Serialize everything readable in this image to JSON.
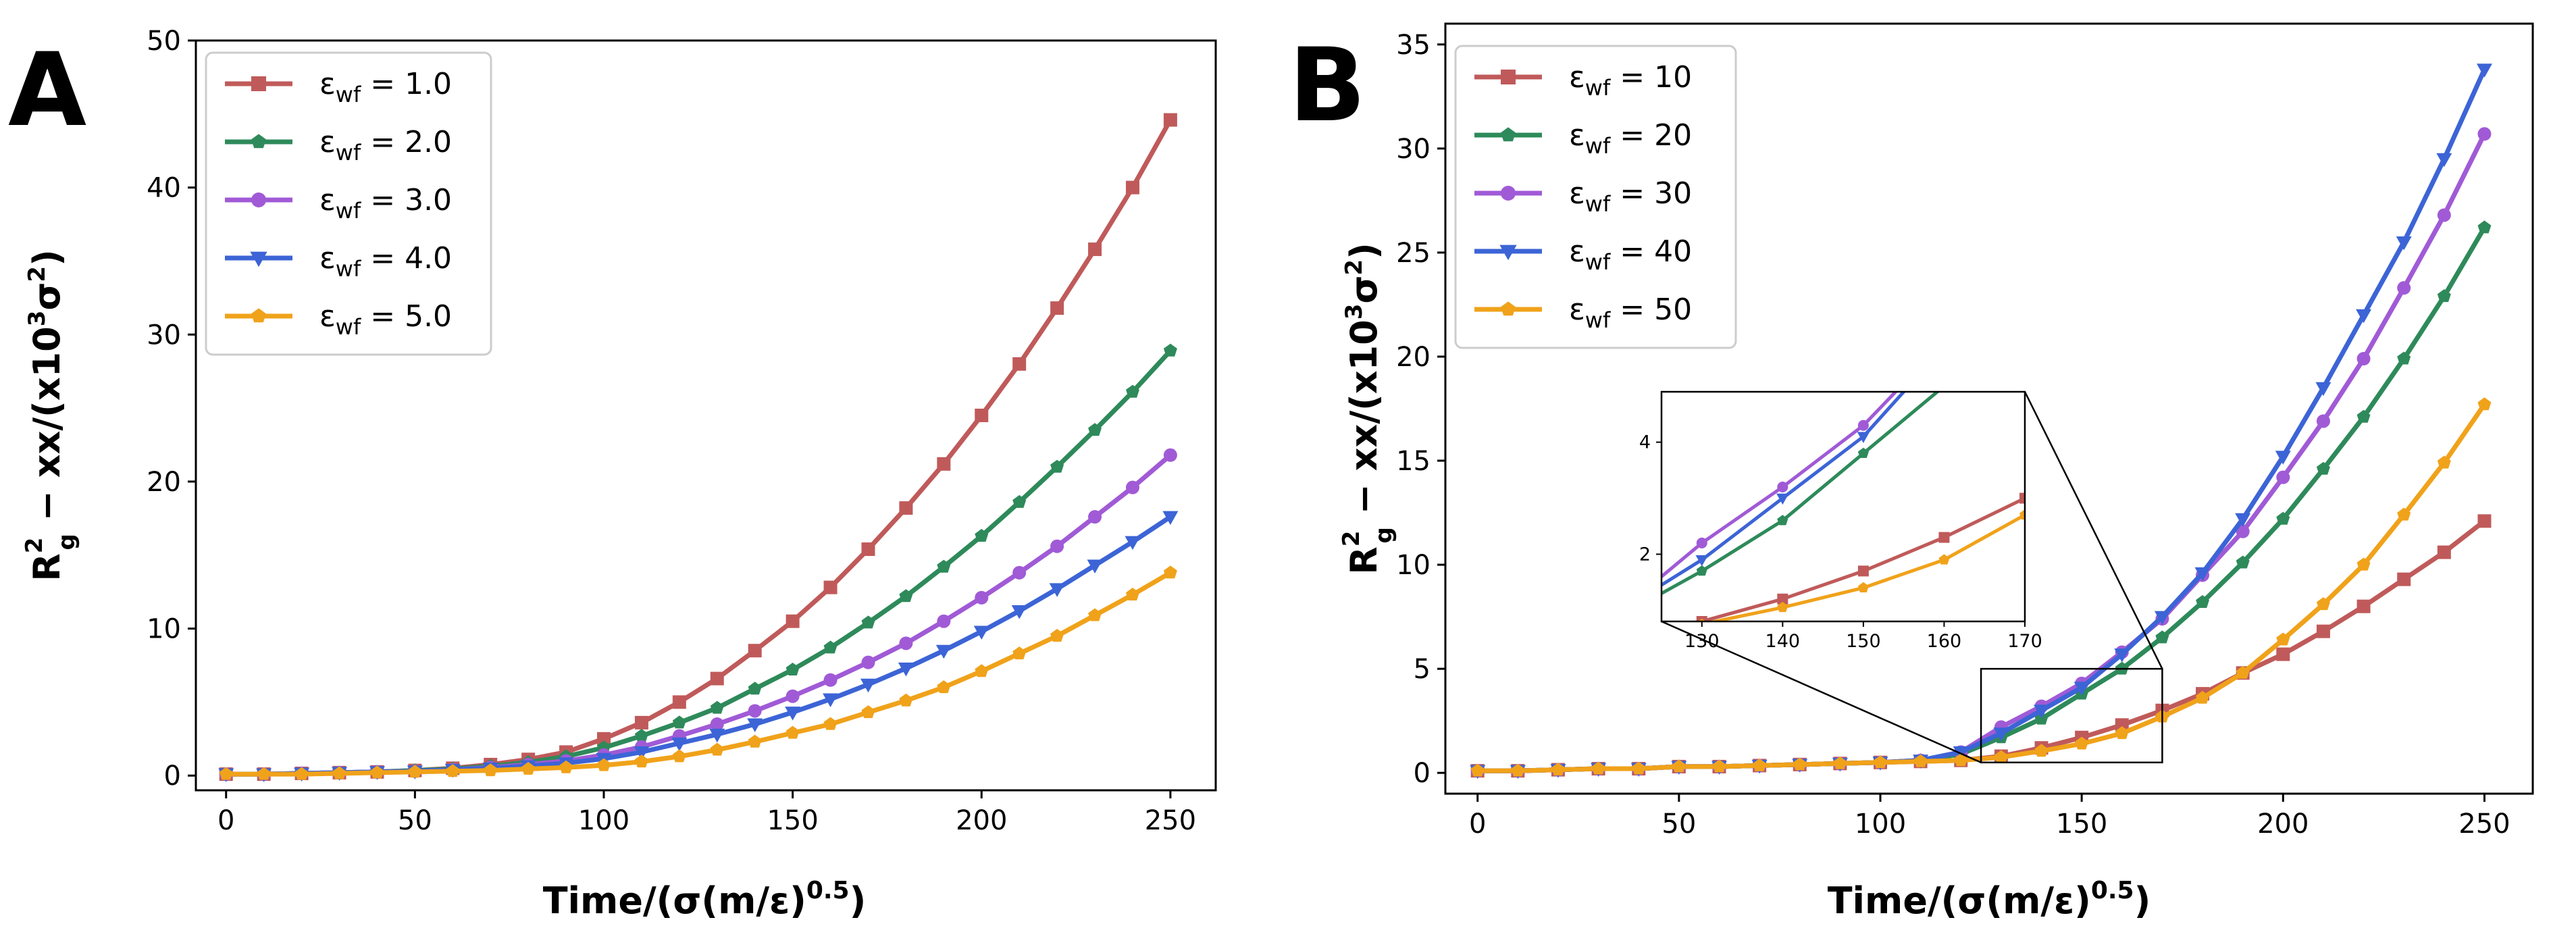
{
  "colors": {
    "c1": "#c05a5a",
    "c2": "#2e8a5a",
    "c3": "#a05ad6",
    "c4": "#3c64d6",
    "c5": "#f0a21a"
  },
  "chart_data": [
    {
      "type": "line",
      "panel_label": "A",
      "xlabel": "Time/(σ(m/ε)^0.5)",
      "ylabel": "R_g^2 − xx/(x10^3σ^2)",
      "xlim": [
        -8,
        262
      ],
      "ylim": [
        -1,
        50
      ],
      "xticks": [
        0,
        50,
        100,
        150,
        200,
        250
      ],
      "yticks": [
        0,
        10,
        20,
        30,
        40,
        50
      ],
      "legend_position": "upper-left",
      "series": [
        {
          "name": "ε_wf = 1.0",
          "sub": "wf",
          "value": "1.0",
          "color": "#c05a5a",
          "marker": "square",
          "x": [
            0,
            10,
            20,
            30,
            40,
            50,
            60,
            70,
            80,
            90,
            100,
            110,
            120,
            130,
            140,
            150,
            160,
            170,
            180,
            190,
            200,
            210,
            220,
            230,
            240,
            250
          ],
          "y": [
            0.1,
            0.1,
            0.15,
            0.2,
            0.25,
            0.35,
            0.5,
            0.75,
            1.1,
            1.6,
            2.5,
            3.6,
            5.0,
            6.6,
            8.5,
            10.5,
            12.8,
            15.4,
            18.2,
            21.2,
            24.5,
            28.0,
            31.8,
            35.8,
            40.0,
            44.6
          ]
        },
        {
          "name": "ε_wf = 2.0",
          "sub": "wf",
          "value": "2.0",
          "color": "#2e8a5a",
          "marker": "pentagon",
          "x": [
            0,
            10,
            20,
            30,
            40,
            50,
            60,
            70,
            80,
            90,
            100,
            110,
            120,
            130,
            140,
            150,
            160,
            170,
            180,
            190,
            200,
            210,
            220,
            230,
            240,
            250
          ],
          "y": [
            0.1,
            0.1,
            0.15,
            0.2,
            0.25,
            0.35,
            0.45,
            0.65,
            0.9,
            1.3,
            1.9,
            2.7,
            3.6,
            4.6,
            5.9,
            7.2,
            8.7,
            10.4,
            12.2,
            14.2,
            16.3,
            18.6,
            21.0,
            23.5,
            26.1,
            28.9
          ]
        },
        {
          "name": "ε_wf = 3.0",
          "sub": "wf",
          "value": "3.0",
          "color": "#a05ad6",
          "marker": "circle",
          "x": [
            0,
            10,
            20,
            30,
            40,
            50,
            60,
            70,
            80,
            90,
            100,
            110,
            120,
            130,
            140,
            150,
            160,
            170,
            180,
            190,
            200,
            210,
            220,
            230,
            240,
            250
          ],
          "y": [
            0.1,
            0.1,
            0.15,
            0.2,
            0.25,
            0.3,
            0.4,
            0.55,
            0.75,
            1.0,
            1.4,
            1.95,
            2.7,
            3.5,
            4.4,
            5.4,
            6.5,
            7.7,
            9.0,
            10.5,
            12.1,
            13.8,
            15.6,
            17.6,
            19.6,
            21.8
          ]
        },
        {
          "name": "ε_wf = 4.0",
          "sub": "wf",
          "value": "4.0",
          "color": "#3c64d6",
          "marker": "triangle-down",
          "x": [
            0,
            10,
            20,
            30,
            40,
            50,
            60,
            70,
            80,
            90,
            100,
            110,
            120,
            130,
            140,
            150,
            160,
            170,
            180,
            190,
            200,
            210,
            220,
            230,
            240,
            250
          ],
          "y": [
            0.1,
            0.1,
            0.15,
            0.2,
            0.25,
            0.3,
            0.4,
            0.5,
            0.65,
            0.85,
            1.15,
            1.6,
            2.2,
            2.8,
            3.5,
            4.3,
            5.2,
            6.2,
            7.3,
            8.5,
            9.8,
            11.2,
            12.7,
            14.3,
            15.9,
            17.6
          ]
        },
        {
          "name": "ε_wf = 5.0",
          "sub": "wf",
          "value": "5.0",
          "color": "#f0a21a",
          "marker": "pentagon",
          "x": [
            0,
            10,
            20,
            30,
            40,
            50,
            60,
            70,
            80,
            90,
            100,
            110,
            120,
            130,
            140,
            150,
            160,
            170,
            180,
            190,
            200,
            210,
            220,
            230,
            240,
            250
          ],
          "y": [
            0.1,
            0.1,
            0.1,
            0.15,
            0.2,
            0.25,
            0.3,
            0.35,
            0.45,
            0.55,
            0.7,
            0.95,
            1.3,
            1.75,
            2.3,
            2.9,
            3.5,
            4.3,
            5.1,
            6.0,
            7.1,
            8.3,
            9.5,
            10.9,
            12.3,
            13.8
          ]
        }
      ]
    },
    {
      "type": "line",
      "panel_label": "B",
      "xlabel": "Time/(σ(m/ε)^0.5)",
      "ylabel": "R_g^2 − xx/(x10^3σ^2)",
      "xlim": [
        -8,
        262
      ],
      "ylim": [
        -1,
        36
      ],
      "xticks": [
        0,
        50,
        100,
        150,
        200,
        250
      ],
      "yticks": [
        0,
        5,
        10,
        15,
        20,
        25,
        30,
        35
      ],
      "legend_position": "upper-left",
      "inset": {
        "xlim": [
          125,
          170
        ],
        "ylim": [
          0.8,
          4.9
        ],
        "xticks": [
          130,
          140,
          150,
          160,
          170
        ],
        "yticks": [
          2,
          4
        ],
        "zoom_box": [
          125,
          170,
          0.5,
          5.0
        ]
      },
      "series": [
        {
          "name": "ε_wf = 10",
          "sub": "wf",
          "value": "10",
          "color": "#c05a5a",
          "marker": "square",
          "x": [
            0,
            10,
            20,
            30,
            40,
            50,
            60,
            70,
            80,
            90,
            100,
            110,
            120,
            130,
            140,
            150,
            160,
            170,
            180,
            190,
            200,
            210,
            220,
            230,
            240,
            250
          ],
          "y": [
            0.1,
            0.1,
            0.15,
            0.2,
            0.2,
            0.3,
            0.3,
            0.35,
            0.4,
            0.45,
            0.5,
            0.55,
            0.6,
            0.8,
            1.2,
            1.7,
            2.3,
            3.0,
            3.8,
            4.8,
            5.7,
            6.8,
            8.0,
            9.3,
            10.6,
            12.1
          ]
        },
        {
          "name": "ε_wf = 20",
          "sub": "wf",
          "value": "20",
          "color": "#2e8a5a",
          "marker": "pentagon",
          "x": [
            0,
            10,
            20,
            30,
            40,
            50,
            60,
            70,
            80,
            90,
            100,
            110,
            120,
            130,
            140,
            150,
            160,
            170,
            180,
            190,
            200,
            210,
            220,
            230,
            240,
            250
          ],
          "y": [
            0.1,
            0.1,
            0.15,
            0.2,
            0.2,
            0.3,
            0.3,
            0.35,
            0.4,
            0.45,
            0.5,
            0.6,
            0.9,
            1.7,
            2.6,
            3.8,
            5.0,
            6.5,
            8.2,
            10.1,
            12.2,
            14.6,
            17.1,
            19.9,
            22.9,
            26.2
          ]
        },
        {
          "name": "ε_wf = 30",
          "sub": "wf",
          "value": "30",
          "color": "#a05ad6",
          "marker": "circle",
          "x": [
            0,
            10,
            20,
            30,
            40,
            50,
            60,
            70,
            80,
            90,
            100,
            110,
            120,
            130,
            140,
            150,
            160,
            170,
            180,
            190,
            200,
            210,
            220,
            230,
            240,
            250
          ],
          "y": [
            0.1,
            0.1,
            0.15,
            0.2,
            0.2,
            0.3,
            0.3,
            0.35,
            0.4,
            0.45,
            0.5,
            0.6,
            1.0,
            2.2,
            3.2,
            4.3,
            5.8,
            7.4,
            9.5,
            11.6,
            14.2,
            16.9,
            19.9,
            23.3,
            26.8,
            30.7
          ]
        },
        {
          "name": "ε_wf = 40",
          "sub": "wf",
          "value": "40",
          "color": "#3c64d6",
          "marker": "triangle-down",
          "x": [
            0,
            10,
            20,
            30,
            40,
            50,
            60,
            70,
            80,
            90,
            100,
            110,
            120,
            130,
            140,
            150,
            160,
            170,
            180,
            190,
            200,
            210,
            220,
            230,
            240,
            250
          ],
          "y": [
            0.1,
            0.1,
            0.15,
            0.2,
            0.2,
            0.3,
            0.3,
            0.35,
            0.4,
            0.45,
            0.5,
            0.6,
            1.0,
            1.9,
            3.0,
            4.1,
            5.7,
            7.5,
            9.6,
            12.2,
            15.2,
            18.5,
            22.0,
            25.5,
            29.5,
            33.8
          ]
        },
        {
          "name": "ε_wf = 50",
          "sub": "wf",
          "value": "50",
          "color": "#f0a21a",
          "marker": "pentagon",
          "x": [
            0,
            10,
            20,
            30,
            40,
            50,
            60,
            70,
            80,
            90,
            100,
            110,
            120,
            130,
            140,
            150,
            160,
            170,
            180,
            190,
            200,
            210,
            220,
            230,
            240,
            250
          ],
          "y": [
            0.1,
            0.1,
            0.15,
            0.2,
            0.2,
            0.3,
            0.3,
            0.35,
            0.4,
            0.45,
            0.5,
            0.55,
            0.6,
            0.75,
            1.05,
            1.4,
            1.9,
            2.7,
            3.6,
            4.8,
            6.4,
            8.1,
            10.0,
            12.4,
            14.9,
            17.7
          ]
        }
      ]
    }
  ]
}
